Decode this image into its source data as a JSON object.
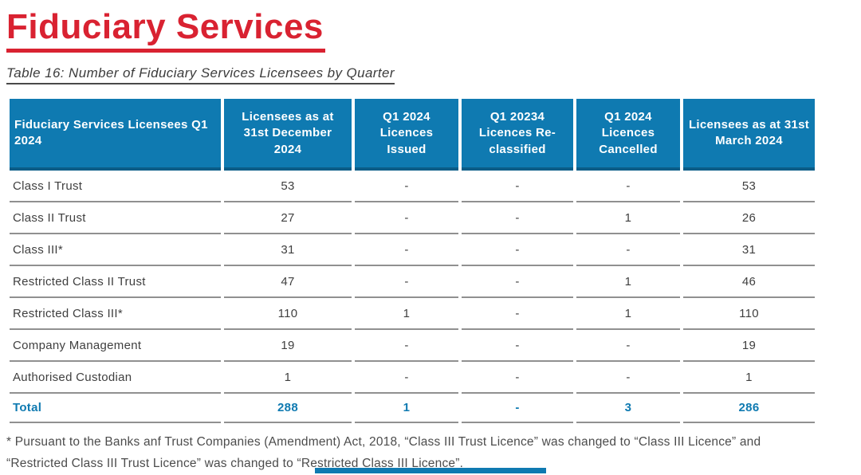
{
  "page": {
    "title": "Fiduciary Services",
    "caption": "Table 16: Number of Fiduciary Services Licensees by Quarter"
  },
  "colors": {
    "accent_blue": "#0f7ab1",
    "header_border_blue": "#0b5c87",
    "title_red": "#d92231",
    "separator_gray": "#909090",
    "body_text": "#3f3f3f"
  },
  "table": {
    "columns": [
      "Fiduciary Services Licensees Q1 2024",
      "Licensees as at 31st December 2024",
      "Q1 2024 Licences Issued",
      "Q1 20234 Licences Re-classified",
      "Q1 2024 Licences Cancelled",
      "Licensees as at 31st March 2024"
    ],
    "rows": [
      {
        "label": "Class I Trust",
        "values": [
          "53",
          "-",
          "-",
          "-",
          "53"
        ]
      },
      {
        "label": "Class II Trust",
        "values": [
          "27",
          "-",
          "-",
          "1",
          "26"
        ]
      },
      {
        "label": "Class III*",
        "values": [
          "31",
          "-",
          "-",
          "-",
          "31"
        ]
      },
      {
        "label": "Restricted Class II Trust",
        "values": [
          "47",
          "-",
          "-",
          "1",
          "46"
        ]
      },
      {
        "label": "Restricted Class III*",
        "values": [
          "110",
          "1",
          "-",
          "1",
          "110"
        ]
      },
      {
        "label": "Company Management",
        "values": [
          "19",
          "-",
          "-",
          "-",
          "19"
        ]
      },
      {
        "label": "Authorised Custodian",
        "values": [
          "1",
          "-",
          "-",
          "-",
          "1"
        ]
      }
    ],
    "total": {
      "label": "Total",
      "values": [
        "288",
        "1",
        "-",
        "3",
        "286"
      ]
    }
  },
  "footnote": {
    "lines": [
      "* Pursuant to the Banks anf Trust Companies (Amendment) Act, 2018, “Class III Trust Licence” was changed to “Class III Licence” and",
      "“Restricted Class III Trust Licence” was changed to “Restricted Class III Licence”."
    ]
  }
}
